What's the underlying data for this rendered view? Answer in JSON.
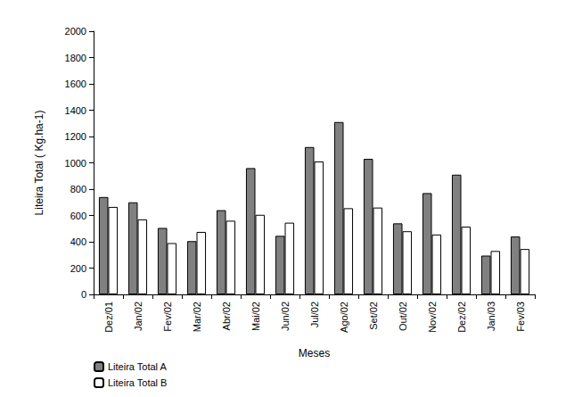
{
  "chart_data": {
    "type": "bar",
    "x_label": "Meses",
    "y_label": "Liteira Total ( Kg.ha-1)",
    "categories": [
      "Dez/01",
      "Jan/02",
      "Fev/02",
      "Mar/02",
      "Abr/02",
      "Mai/02",
      "Jun/02",
      "Jul/02",
      "Ago/02",
      "Set/02",
      "Out/02",
      "Nov/02",
      "Dez/02",
      "Jan/03",
      "Fev/03"
    ],
    "series": [
      {
        "name": "Liteira Total A",
        "color": "#808080",
        "values": [
          740,
          700,
          505,
          405,
          640,
          960,
          445,
          1120,
          1310,
          1030,
          540,
          770,
          910,
          295,
          440
        ]
      },
      {
        "name": "Liteira Total B",
        "color": "#ffffff",
        "values": [
          665,
          570,
          390,
          475,
          560,
          605,
          545,
          1010,
          655,
          660,
          480,
          455,
          515,
          330,
          345
        ]
      }
    ],
    "ylim": [
      0,
      2000
    ],
    "yticks": [
      0,
      200,
      400,
      600,
      800,
      1000,
      1200,
      1400,
      1600,
      1800,
      2000
    ],
    "grid": false,
    "legend": "bottom-left"
  }
}
